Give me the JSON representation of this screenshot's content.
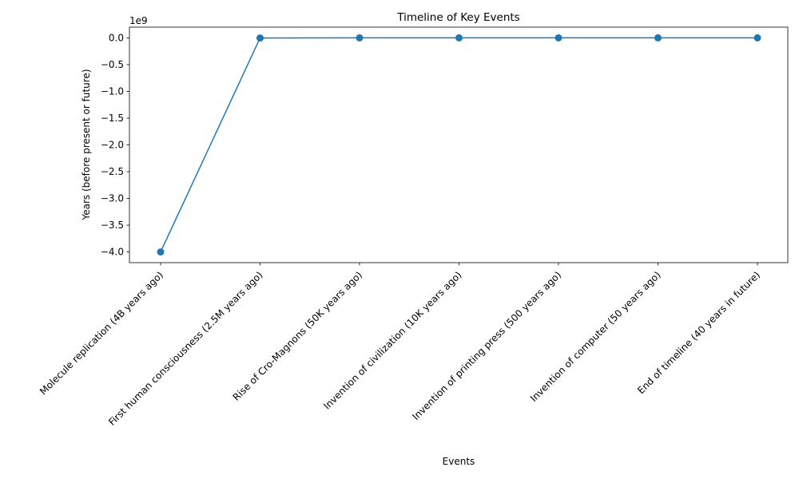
{
  "chart_data": {
    "type": "line",
    "title": "Timeline of Key Events",
    "xlabel": "Events",
    "ylabel": "Years (before present or future)",
    "y_offset_label": "1e9",
    "categories": [
      "Molecule replication (4B years ago)",
      "First human consciousness (2.5M years ago)",
      "Rise of Cro-Magnons (50K years ago)",
      "Invention of civilization (10K years ago)",
      "Invention of printing press (500 years ago)",
      "Invention of computer (50 years ago)",
      "End of timeline (40 years in future)"
    ],
    "values": [
      -4000000000,
      -2500000,
      -50000,
      -10000,
      -500,
      -50,
      40
    ],
    "ylim": [
      -4.2,
      0.2
    ],
    "yticks": [
      0.0,
      -0.5,
      -1.0,
      -1.5,
      -2.0,
      -2.5,
      -3.0,
      -3.5,
      -4.0
    ],
    "ytick_labels": [
      "0.0",
      "−0.5",
      "−1.0",
      "−1.5",
      "−2.0",
      "−2.5",
      "−3.0",
      "−3.5",
      "−4.0"
    ],
    "marker": "circle",
    "grid": false,
    "line_color": "#1f77b4"
  }
}
